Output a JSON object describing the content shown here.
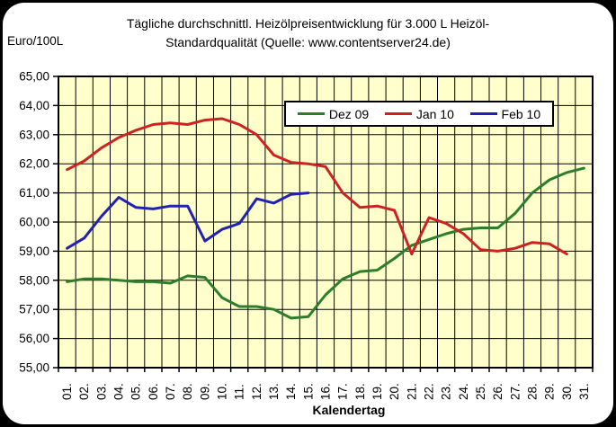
{
  "window": {
    "background": "#000000",
    "card_background": "#FFFFFF"
  },
  "header": {
    "title_line1": "Tägliche durchschnittl. Heizölpreisentwicklung für 3.000 L Heizöl-",
    "title_line2": "Standardqualität (Quelle: www.contentserver24.de)"
  },
  "chart_data": {
    "type": "line",
    "title": "Tägliche durchschnittl. Heizölpreisentwicklung für 3.000 L Heizöl-Standardqualität (Quelle: www.contentserver24.de)",
    "xlabel": "Kalendertag",
    "ylabel": "Euro/100L",
    "ylim": [
      55,
      65
    ],
    "ytick_step": 1.0,
    "ytick_labels": [
      "65,00",
      "64,00",
      "63,00",
      "62,00",
      "61,00",
      "60,00",
      "59,00",
      "58,00",
      "57,00",
      "56,00",
      "55,00"
    ],
    "categories": [
      "01.",
      "02.",
      "03.",
      "04.",
      "05.",
      "06.",
      "07.",
      "08.",
      "09.",
      "10.",
      "11.",
      "12.",
      "13.",
      "14.",
      "15.",
      "16.",
      "17.",
      "18.",
      "19.",
      "20.",
      "21.",
      "22.",
      "23.",
      "24.",
      "25.",
      "26.",
      "27.",
      "28.",
      "29.",
      "30.",
      "31."
    ],
    "grid": true,
    "plot_background": "#FFFFCC",
    "grid_color": "#000000",
    "legend_position": "inside-top-right",
    "series": [
      {
        "name": "Dez 09",
        "color": "#2D7D2D",
        "values": [
          57.95,
          58.05,
          58.05,
          58.0,
          57.95,
          57.95,
          57.9,
          58.15,
          58.1,
          57.4,
          57.1,
          57.1,
          57.0,
          56.7,
          56.75,
          57.5,
          58.05,
          58.3,
          58.35,
          58.75,
          59.2,
          59.4,
          59.6,
          59.75,
          59.8,
          59.8,
          60.3,
          61.0,
          61.45,
          61.7,
          61.85
        ]
      },
      {
        "name": "Jan 10",
        "color": "#CC2222",
        "values": [
          61.8,
          62.1,
          62.55,
          62.9,
          63.15,
          63.35,
          63.4,
          63.35,
          63.5,
          63.55,
          63.35,
          63.0,
          62.3,
          62.05,
          62.0,
          61.9,
          61.0,
          60.5,
          60.55,
          60.4,
          58.9,
          60.15,
          59.95,
          59.6,
          59.05,
          59.0,
          59.1,
          59.3,
          59.25,
          58.9
        ]
      },
      {
        "name": "Feb 10",
        "color": "#2222B2",
        "values": [
          59.1,
          59.45,
          60.2,
          60.85,
          60.5,
          60.45,
          60.55,
          60.55,
          59.35,
          59.75,
          59.95,
          60.8,
          60.65,
          60.95,
          61.0
        ]
      }
    ]
  }
}
